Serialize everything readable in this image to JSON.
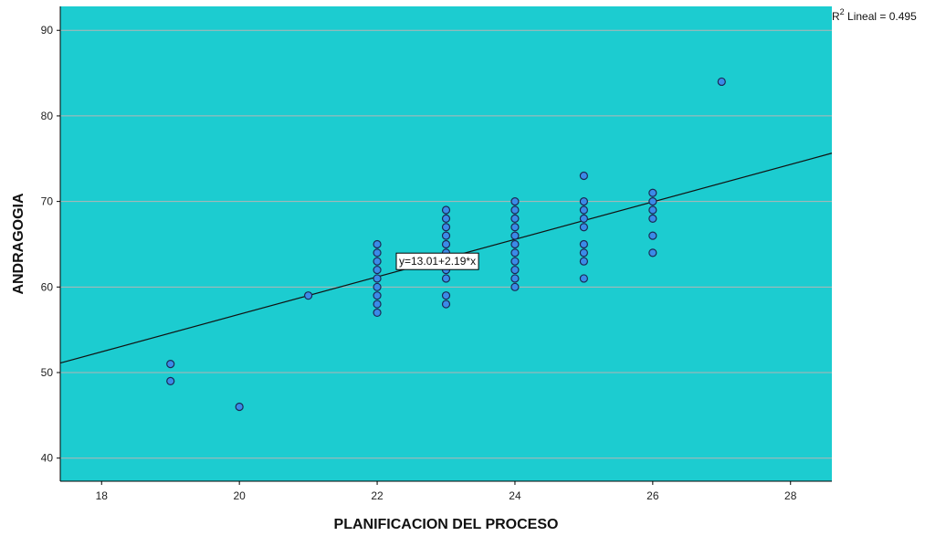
{
  "colors": {
    "plot_bg": "#1cccd0",
    "grid": "#b5b5b5",
    "point_fill": "#3b8be8",
    "point_stroke": "#1a2a55",
    "fit_line": "#111111"
  },
  "chart_data": {
    "type": "scatter",
    "xlabel": "PLANIFICACION DEL PROCESO",
    "ylabel": "ANDRAGOGIA",
    "xlim": [
      17.4,
      28.6
    ],
    "ylim": [
      37.3,
      92.8
    ],
    "xticks": [
      18,
      20,
      22,
      24,
      26,
      28
    ],
    "yticks": [
      40,
      50,
      60,
      70,
      80,
      90
    ],
    "grid": "horizontal",
    "points": [
      [
        19,
        51
      ],
      [
        19,
        49
      ],
      [
        20,
        46
      ],
      [
        21,
        59
      ],
      [
        22,
        65
      ],
      [
        22,
        64
      ],
      [
        22,
        63
      ],
      [
        22,
        62
      ],
      [
        22,
        61
      ],
      [
        22,
        60
      ],
      [
        22,
        59
      ],
      [
        22,
        58
      ],
      [
        22,
        57
      ],
      [
        23,
        69
      ],
      [
        23,
        68
      ],
      [
        23,
        67
      ],
      [
        23,
        66
      ],
      [
        23,
        65
      ],
      [
        23,
        64
      ],
      [
        23,
        63
      ],
      [
        23,
        62
      ],
      [
        23,
        61
      ],
      [
        23,
        59
      ],
      [
        23,
        58
      ],
      [
        24,
        70
      ],
      [
        24,
        69
      ],
      [
        24,
        68
      ],
      [
        24,
        67
      ],
      [
        24,
        66
      ],
      [
        24,
        65
      ],
      [
        24,
        64
      ],
      [
        24,
        63
      ],
      [
        24,
        62
      ],
      [
        24,
        61
      ],
      [
        24,
        60
      ],
      [
        25,
        73
      ],
      [
        25,
        70
      ],
      [
        25,
        69
      ],
      [
        25,
        68
      ],
      [
        25,
        67
      ],
      [
        25,
        65
      ],
      [
        25,
        64
      ],
      [
        25,
        63
      ],
      [
        25,
        61
      ],
      [
        26,
        71
      ],
      [
        26,
        70
      ],
      [
        26,
        69
      ],
      [
        26,
        68
      ],
      [
        26,
        66
      ],
      [
        26,
        64
      ],
      [
        27,
        84
      ]
    ],
    "fit_line": {
      "intercept": 13.01,
      "slope": 2.19
    },
    "equation_label": "y=13.01+2.19*x",
    "r2_prefix": "R",
    "r2_sup": "2",
    "r2_label": " Lineal = 0.495"
  }
}
